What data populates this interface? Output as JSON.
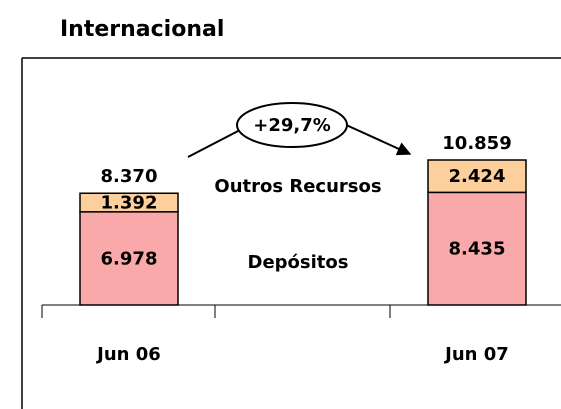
{
  "chart_data": {
    "type": "stacked-bar",
    "title": "Internacional",
    "categories": [
      "Jun 06",
      "Jun 07"
    ],
    "series": [
      {
        "name": "Depósitos",
        "color": "#f9a9a9",
        "values": [
          6978,
          8435
        ],
        "value_labels": [
          "6.978",
          "8.435"
        ]
      },
      {
        "name": "Outros Recursos",
        "color": "#fdcf9c",
        "values": [
          1392,
          2424
        ],
        "value_labels": [
          "1.392",
          "2.424"
        ]
      }
    ],
    "totals": {
      "values": [
        8370,
        10859
      ],
      "value_labels": [
        "8.370",
        "10.859"
      ]
    },
    "annotation": "+29,7%"
  }
}
